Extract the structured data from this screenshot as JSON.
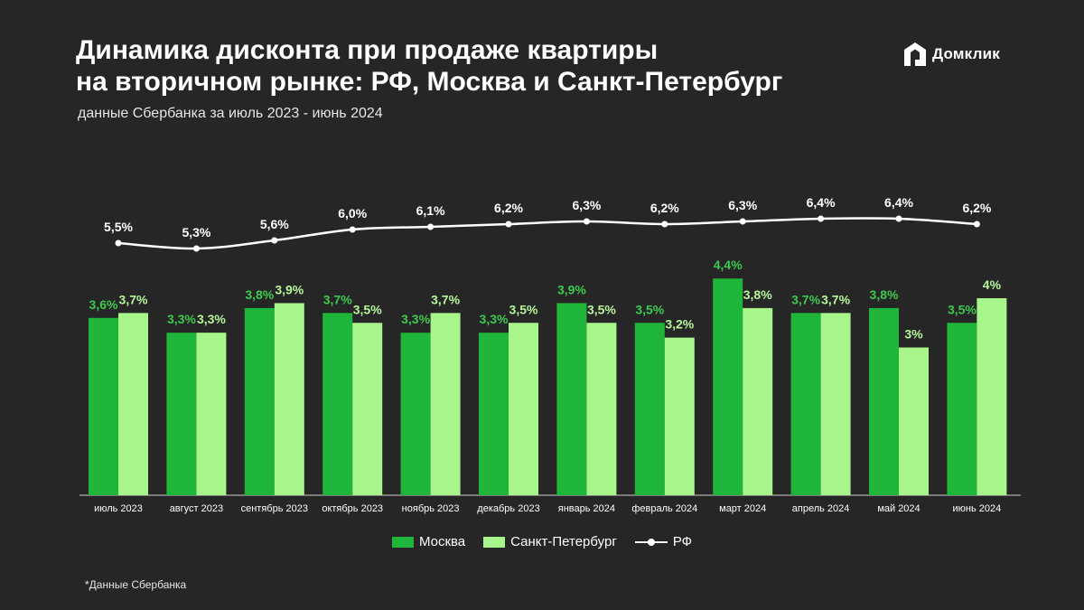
{
  "header": {
    "title_line1": "Динамика дисконта при продаже квартиры",
    "title_line2": "на вторичном рынке: РФ, Москва и Санкт-Петербург",
    "subtitle": "данные Сбербанка за июль 2023 - июнь 2024"
  },
  "brand": {
    "name": "Домклик",
    "icon": "domclick-house-icon"
  },
  "footnote": "*Данные Сбербанка",
  "colors": {
    "moscow": "#1EB53A",
    "spb": "#A8F58C",
    "rf": "#FFFFFF",
    "background": "#262626",
    "moscow_label": "#3CC94F",
    "spb_label": "#B6F59A"
  },
  "legend": {
    "moscow": "Москва",
    "spb": "Санкт-Петербург",
    "rf": "РФ"
  },
  "chart_data": {
    "type": "bar",
    "title": "Динамика дисконта при продаже квартиры на вторичном рынке: РФ, Москва и Санкт-Петербург",
    "categories": [
      "июль 2023",
      "август 2023",
      "сентябрь 2023",
      "октябрь 2023",
      "ноябрь 2023",
      "декабрь 2023",
      "январь 2024",
      "февраль 2024",
      "март 2024",
      "апрель 2024",
      "май 2024",
      "июнь 2024"
    ],
    "series": [
      {
        "name": "Москва",
        "type": "bar",
        "values": [
          3.6,
          3.3,
          3.8,
          3.7,
          3.3,
          3.3,
          3.9,
          3.5,
          4.4,
          3.7,
          3.8,
          3.5
        ],
        "labels": [
          "3,6%",
          "3,3%",
          "3,8%",
          "3,7%",
          "3,3%",
          "3,3%",
          "3,9%",
          "3,5%",
          "4,4%",
          "3,7%",
          "3,8%",
          "3,5%"
        ]
      },
      {
        "name": "Санкт-Петербург",
        "type": "bar",
        "values": [
          3.7,
          3.3,
          3.9,
          3.5,
          3.7,
          3.5,
          3.5,
          3.2,
          3.8,
          3.7,
          3.0,
          4.0
        ],
        "labels": [
          "3,7%",
          "3,3%",
          "3,9%",
          "3,5%",
          "3,7%",
          "3,5%",
          "3,5%",
          "3,2%",
          "3,8%",
          "3,7%",
          "3%",
          "4%"
        ]
      },
      {
        "name": "РФ",
        "type": "line",
        "values": [
          5.5,
          5.3,
          5.6,
          6.0,
          6.1,
          6.2,
          6.3,
          6.2,
          6.3,
          6.4,
          6.4,
          6.2
        ],
        "labels": [
          "5,5%",
          "5,3%",
          "5,6%",
          "6,0%",
          "6,1%",
          "6,2%",
          "6,3%",
          "6,2%",
          "6,3%",
          "6,4%",
          "6,4%",
          "6,2%"
        ]
      }
    ],
    "xlabel": "",
    "ylabel": "",
    "grid": false,
    "legend_position": "bottom-center"
  }
}
